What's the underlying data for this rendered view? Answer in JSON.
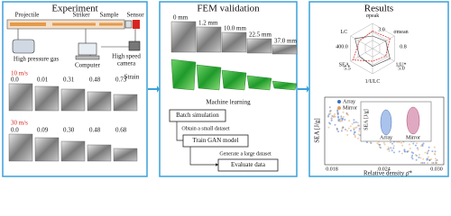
{
  "experiment": {
    "title": "Experiment",
    "apparatus": {
      "projectile": "Projectile",
      "striker": "Striker",
      "sample": "Sample",
      "sensor": "Sensor",
      "gas": "High pressure gas",
      "camera": [
        "High speed",
        "camera"
      ],
      "computer": "Computer"
    },
    "strain_label": "Strain",
    "rows": [
      {
        "speed": "10 m/s",
        "strains": [
          "0.0",
          "0.01",
          "0.31",
          "0.48",
          "0.73"
        ]
      },
      {
        "speed": "30 m/s",
        "strains": [
          "0.0",
          "0.09",
          "0.30",
          "0.48",
          "0.68"
        ]
      }
    ]
  },
  "fem": {
    "title": "FEM validation",
    "displacements": [
      "0 mm",
      "1.2 mm",
      "10.0 mm",
      "22.5 mm",
      "37.0 mm"
    ],
    "ml_title": "Machine learning",
    "steps": [
      "Batch simulation",
      "Train GAN model",
      "Evaluate data"
    ],
    "transitions": [
      "Obtain a small dataset",
      "Generate a large dataset"
    ]
  },
  "results": {
    "title": "Results",
    "radar": {
      "axes": [
        "σpeak",
        "σmean",
        "1/U*",
        "1/ULC",
        "SEA",
        "LC"
      ],
      "values": [
        "3.0",
        "0.8",
        "5.0",
        "5.5",
        "400.0"
      ]
    },
    "scatter": {
      "y_label": "SEA [J/g]",
      "x_label": "Relative density ρ̄*",
      "legend": [
        "Array",
        "Mirror"
      ],
      "xticks": [
        "0.018",
        "0.024",
        "0.030"
      ],
      "inset": {
        "y_label": "SEA [J/g]",
        "categories": [
          "Array",
          "Mirror"
        ]
      }
    }
  }
}
